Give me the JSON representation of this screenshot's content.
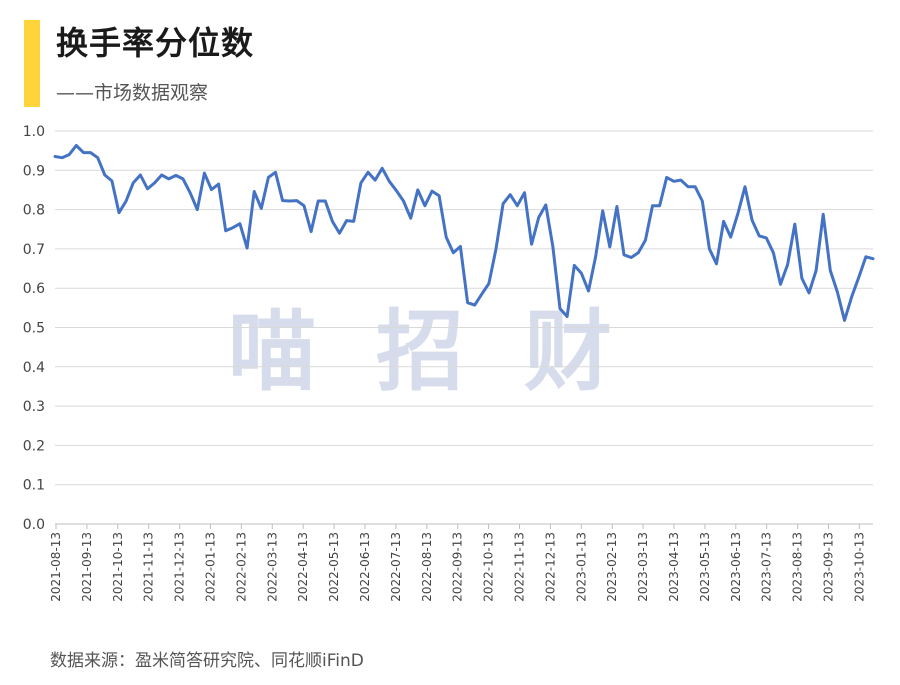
{
  "header": {
    "title": "换手率分位数",
    "subtitle": "——市场数据观察",
    "accent_color": "#FFD43B"
  },
  "watermark": {
    "chars": [
      "喵",
      "招",
      "财"
    ]
  },
  "footer": {
    "source": "数据来源：盈米简答研究院、同花顺iFinD"
  },
  "chart_data": {
    "type": "line",
    "title": "换手率分位数",
    "xlabel": "",
    "ylabel": "",
    "ylim": [
      0,
      1.0
    ],
    "yticks": [
      "0.0",
      "0.1",
      "0.2",
      "0.3",
      "0.4",
      "0.5",
      "0.6",
      "0.7",
      "0.8",
      "0.9",
      "1.0"
    ],
    "xticks": [
      "2021-08-13",
      "2021-09-13",
      "2021-10-13",
      "2021-11-13",
      "2021-12-13",
      "2022-01-13",
      "2022-02-13",
      "2022-03-13",
      "2022-04-13",
      "2022-05-13",
      "2022-06-13",
      "2022-07-13",
      "2022-08-13",
      "2022-09-13",
      "2022-10-13",
      "2022-11-13",
      "2022-12-13",
      "2023-01-13",
      "2023-02-13",
      "2023-03-13",
      "2023-04-13",
      "2023-05-13",
      "2023-06-13",
      "2023-07-13",
      "2023-08-13",
      "2023-09-13",
      "2023-10-13"
    ],
    "grid": true,
    "line_color": "#4472C4",
    "series": [
      {
        "name": "",
        "values": [
          0.935,
          0.932,
          0.94,
          0.963,
          0.945,
          0.945,
          0.932,
          0.888,
          0.873,
          0.792,
          0.822,
          0.868,
          0.888,
          0.853,
          0.868,
          0.888,
          0.878,
          0.887,
          0.878,
          0.843,
          0.8,
          0.893,
          0.851,
          0.865,
          0.746,
          0.754,
          0.764,
          0.702,
          0.846,
          0.803,
          0.882,
          0.895,
          0.823,
          0.822,
          0.823,
          0.81,
          0.744,
          0.822,
          0.822,
          0.77,
          0.74,
          0.772,
          0.77,
          0.868,
          0.895,
          0.875,
          0.905,
          0.872,
          0.848,
          0.822,
          0.778,
          0.85,
          0.81,
          0.847,
          0.835,
          0.73,
          0.69,
          0.706,
          0.563,
          0.557,
          0.585,
          0.612,
          0.7,
          0.815,
          0.838,
          0.81,
          0.843,
          0.712,
          0.78,
          0.812,
          0.705,
          0.548,
          0.528,
          0.658,
          0.638,
          0.593,
          0.68,
          0.797,
          0.705,
          0.808,
          0.685,
          0.678,
          0.69,
          0.722,
          0.81,
          0.81,
          0.882,
          0.872,
          0.875,
          0.858,
          0.858,
          0.822,
          0.7,
          0.662,
          0.77,
          0.73,
          0.79,
          0.858,
          0.773,
          0.733,
          0.728,
          0.69,
          0.61,
          0.66,
          0.763,
          0.625,
          0.588,
          0.645,
          0.788,
          0.645,
          0.59,
          0.518,
          0.578,
          0.628,
          0.68,
          0.675
        ]
      }
    ]
  }
}
